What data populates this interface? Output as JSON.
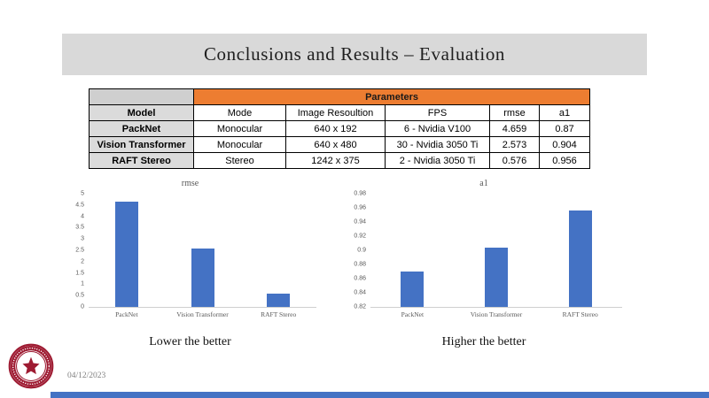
{
  "slide": {
    "title": "Conclusions and Results – Evaluation",
    "date": "04/12/2023",
    "left_caption": "Lower the better",
    "right_caption": "Higher the better",
    "logo": "northeastern-university-seal"
  },
  "table": {
    "group_header": "Parameters",
    "columns": [
      "Model",
      "Mode",
      "Image Resoultion",
      "FPS",
      "rmse",
      "a1"
    ],
    "rows": [
      [
        "PackNet",
        "Monocular",
        "640 x 192",
        "6 - Nvidia V100",
        "4.659",
        "0.87"
      ],
      [
        "Vision Transformer",
        "Monocular",
        "640 x 480",
        "30 - Nvidia 3050 Ti",
        "2.573",
        "0.904"
      ],
      [
        "RAFT Stereo",
        "Stereo",
        "1242 x 375",
        "2 - Nvidia 3050 Ti",
        "0.576",
        "0.956"
      ]
    ]
  },
  "chart_data": [
    {
      "type": "bar",
      "title": "rmse",
      "categories": [
        "PackNet",
        "Vision Transformer",
        "RAFT Stereo"
      ],
      "values": [
        4.659,
        2.573,
        0.576
      ],
      "ylim": [
        0,
        5
      ],
      "yticks": [
        "5",
        "4.5",
        "4",
        "3.5",
        "3",
        "2.5",
        "2",
        "1.5",
        "1",
        "0.5",
        "0"
      ],
      "xlabel": "",
      "ylabel": "",
      "grid": false,
      "legend": "none"
    },
    {
      "type": "bar",
      "title": "a1",
      "categories": [
        "PackNet",
        "Vision Transformer",
        "RAFT Stereo"
      ],
      "values": [
        0.87,
        0.904,
        0.956
      ],
      "ylim": [
        0.82,
        0.98
      ],
      "yticks": [
        "0.98",
        "0.96",
        "0.94",
        "0.92",
        "0.9",
        "0.88",
        "0.86",
        "0.84",
        "0.82"
      ],
      "xlabel": "",
      "ylabel": "",
      "grid": false,
      "legend": "none"
    }
  ],
  "colors": {
    "bar": "#4472C4",
    "table_group_header": "#ED7D31",
    "title_band": "#D9D9D9",
    "row_header_bg": "#DBDBDB",
    "bottom_bar": "#4472C4",
    "seal_red": "#9E1B32"
  }
}
